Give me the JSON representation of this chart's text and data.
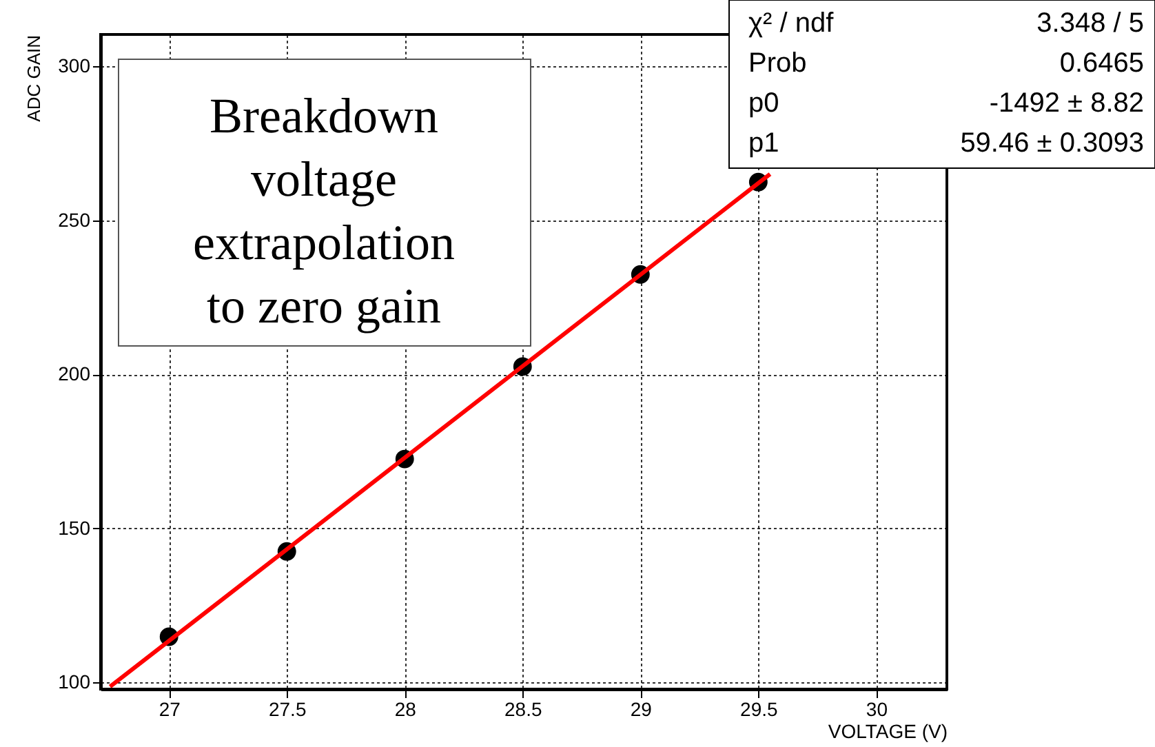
{
  "chart_data": {
    "type": "scatter",
    "xlabel": "VOLTAGE (V)",
    "ylabel": "ADC GAIN",
    "xlim": [
      26.71,
      30.3
    ],
    "ylim": [
      97.8,
      310.3
    ],
    "xticks": [
      27,
      27.5,
      28,
      28.5,
      29,
      29.5,
      30
    ],
    "yticks": [
      100,
      150,
      200,
      250,
      300
    ],
    "grid": true,
    "marker": "circle",
    "series": [
      {
        "color": "#000000",
        "x": [
          27,
          27.5,
          28,
          28.5,
          29,
          29.5
        ],
        "values": [
          114.8,
          142.5,
          172.5,
          202.5,
          232.4,
          262.4
        ]
      },
      {
        "type": "line",
        "color": "#ff0000",
        "marker": "none",
        "x": [
          26.75,
          29.55
        ],
        "values": [
          98.6,
          265.0
        ]
      }
    ],
    "annotations": [
      "Breakdown voltage extrapolation to zero gain",
      "χ² / ndf",
      "3.348 / 5",
      "Prob",
      "0.6465",
      "p0",
      "-1492 ±  8.82",
      "p1",
      "59.46 ± 0.3093"
    ]
  }
}
